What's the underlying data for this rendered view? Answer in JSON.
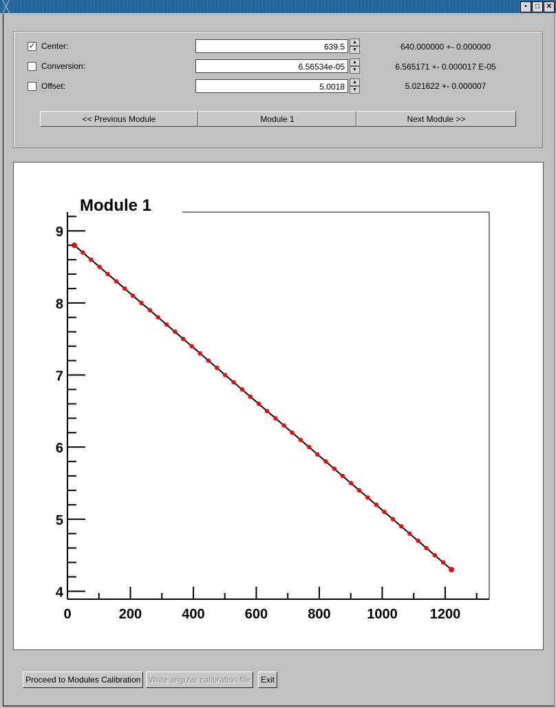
{
  "window": {
    "controls": [
      "minimize",
      "maximize",
      "close"
    ]
  },
  "params": [
    {
      "label": "Center:",
      "checked": true,
      "value": "639.5",
      "result": "640.000000 +- 0.000000"
    },
    {
      "label": "Conversion:",
      "checked": false,
      "value": "6.56534e-05",
      "result": "6.565171 +- 0.000017 E-05"
    },
    {
      "label": "Offset:",
      "checked": false,
      "value": "5.0018",
      "result": "5.021622 +- 0.000007"
    }
  ],
  "nav": {
    "prev": "<< Previous Module",
    "current": "Module 1",
    "next": "Next Module >>"
  },
  "buttons": {
    "proceed": "Proceed to Modules Calibration",
    "write": "Write angular calibration file",
    "exit": "Exit"
  },
  "chart_data": {
    "type": "scatter",
    "title": "Module 1",
    "xlim": [
      0,
      1340
    ],
    "ylim": [
      3.89,
      9.26
    ],
    "xticks": [
      "0",
      "200",
      "400",
      "600",
      "800",
      "1000",
      "1200"
    ],
    "yticks": [
      "4",
      "5",
      "6",
      "7",
      "8",
      "9"
    ],
    "grid": false,
    "marker_color": "#ff0000",
    "line_color": "#000000",
    "x": [
      22,
      49,
      75,
      102,
      128,
      155,
      182,
      208,
      235,
      262,
      288,
      315,
      342,
      368,
      395,
      421,
      448,
      475,
      501,
      528,
      555,
      581,
      608,
      634,
      661,
      688,
      714,
      741,
      768,
      794,
      821,
      848,
      874,
      901,
      927,
      954,
      981,
      1007,
      1034,
      1061,
      1087,
      1114,
      1140,
      1167,
      1194,
      1220
    ],
    "y": [
      8.8,
      8.7,
      8.6,
      8.5,
      8.4,
      8.3,
      8.2,
      8.1,
      8.0,
      7.9,
      7.8,
      7.7,
      7.6,
      7.5,
      7.4,
      7.3,
      7.2,
      7.1,
      7.0,
      6.9,
      6.8,
      6.7,
      6.6,
      6.5,
      6.4,
      6.3,
      6.2,
      6.1,
      6.0,
      5.9,
      5.8,
      5.7,
      5.6,
      5.5,
      5.4,
      5.3,
      5.2,
      5.1,
      5.0,
      4.9,
      4.8,
      4.7,
      4.6,
      4.5,
      4.4,
      4.3
    ]
  }
}
